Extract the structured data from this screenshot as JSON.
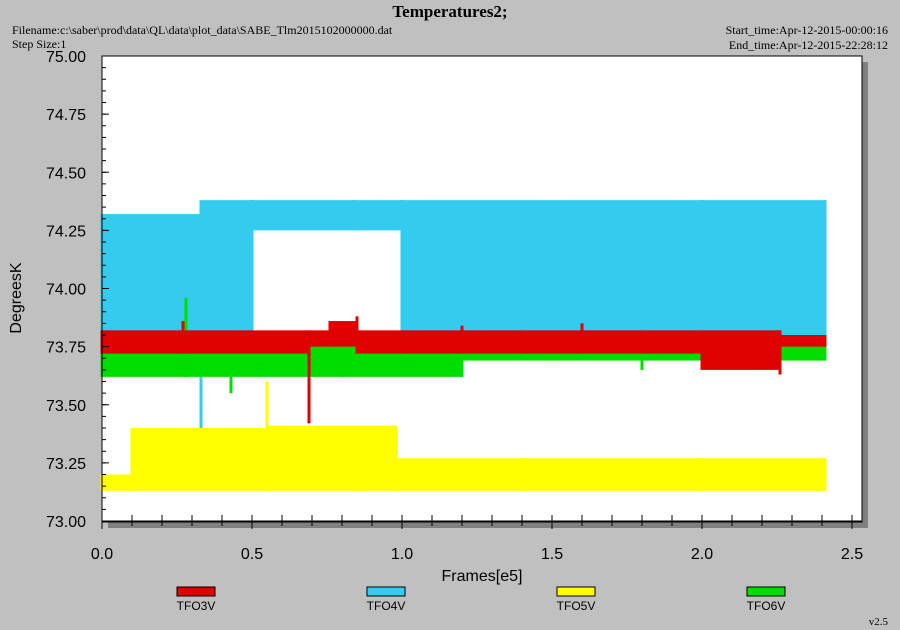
{
  "header": {
    "title": "Temperatures2;",
    "filename": "Filename:c:\\saber\\prod\\data\\QL\\data\\plot_data\\SABE_Tlm2015102000000.dat",
    "step_size": "Step Size:1",
    "start_time": "Start_time:Apr-12-2015-00:00:16",
    "end_time": "End_time:Apr-12-2015-22:28:12",
    "version": "v2.5"
  },
  "colors": {
    "background": "#c0c0c0",
    "plot_area": "#ffffff",
    "TFO3V": "#e00000",
    "TFO4V": "#33ccee",
    "TFO5V": "#ffff00",
    "TFO6V": "#00dd00"
  },
  "chart_data": {
    "type": "line",
    "title": "Temperatures2;",
    "xlabel": "Frames[e5]",
    "ylabel": "DegreesK",
    "xlim": [
      0,
      2.5
    ],
    "ylim": [
      73.0,
      75.0
    ],
    "x_ticks": [
      "0.0",
      "0.5",
      "1.0",
      "1.5",
      "2.0",
      "2.5"
    ],
    "y_ticks": [
      "73.00",
      "73.25",
      "73.50",
      "73.75",
      "74.00",
      "74.25",
      "74.50",
      "74.75",
      "75.00"
    ],
    "grid": false,
    "legend_position": "bottom",
    "series": [
      {
        "name": "TFO3V",
        "color": "#e00000",
        "x": [
          0.0,
          0.27,
          0.69,
          0.76,
          0.85,
          1.0,
          1.2,
          1.4,
          1.6,
          1.8,
          2.0,
          2.26,
          2.41
        ],
        "low": [
          73.72,
          73.72,
          73.42,
          73.75,
          73.72,
          73.72,
          73.72,
          73.72,
          73.72,
          73.72,
          73.65,
          73.63,
          73.75
        ],
        "high": [
          73.82,
          73.86,
          73.82,
          73.86,
          73.88,
          73.82,
          73.84,
          73.82,
          73.85,
          73.82,
          73.82,
          73.82,
          73.8
        ]
      },
      {
        "name": "TFO4V",
        "color": "#33ccee",
        "x": [
          0.0,
          0.33,
          0.5,
          0.84,
          1.0,
          1.5,
          2.0,
          2.41
        ],
        "low": [
          73.75,
          73.33,
          73.75,
          74.25,
          73.75,
          73.75,
          73.75,
          73.75
        ],
        "high": [
          74.32,
          74.38,
          74.38,
          74.38,
          74.38,
          74.38,
          74.38,
          74.38
        ]
      },
      {
        "name": "TFO5V",
        "color": "#ffff00",
        "x": [
          0.0,
          0.1,
          0.55,
          0.86,
          0.98,
          1.4,
          2.0,
          2.41
        ],
        "low": [
          73.13,
          73.13,
          73.13,
          73.13,
          73.13,
          73.13,
          73.13,
          73.13
        ],
        "high": [
          73.2,
          73.4,
          73.6,
          73.41,
          73.41,
          73.27,
          73.27,
          73.27
        ]
      },
      {
        "name": "TFO6V",
        "color": "#00dd00",
        "x": [
          0.0,
          0.28,
          0.43,
          0.8,
          1.2,
          1.5,
          1.8,
          2.0,
          2.41
        ],
        "low": [
          73.62,
          73.62,
          73.55,
          73.62,
          73.62,
          73.69,
          73.65,
          73.69,
          73.69
        ],
        "high": [
          73.76,
          73.96,
          73.76,
          73.77,
          73.77,
          73.77,
          73.77,
          73.77,
          73.77
        ]
      }
    ]
  }
}
